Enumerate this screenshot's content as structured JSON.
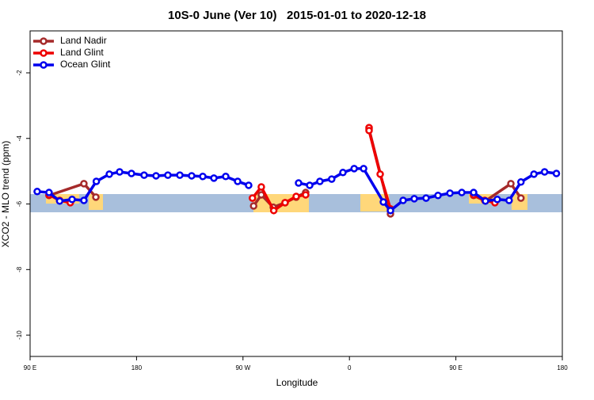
{
  "chart_data": {
    "type": "line",
    "title": "10S-0 June (Ver 10)   2015-01-01 to 2020-12-18",
    "xlabel": "Longitude",
    "ylabel": "XCO2 - MLO trend (ppm)",
    "xlim": [
      90,
      540
    ],
    "ylim": [
      -10.65,
      -0.72
    ],
    "xticks": [
      {
        "value": 90,
        "label": "90 E"
      },
      {
        "value": 180,
        "label": "180"
      },
      {
        "value": 270,
        "label": "90 W"
      },
      {
        "value": 360,
        "label": "0"
      },
      {
        "value": 450,
        "label": "90 E"
      },
      {
        "value": 540,
        "label": "180"
      }
    ],
    "yticks": [
      -10,
      -8,
      -6,
      -4,
      -2
    ],
    "legend": "top-left",
    "series": [
      {
        "name": "Land Nadir",
        "color": "#a52a2a",
        "x": [
          106,
          135.5,
          145.6,
          null,
          279,
          285.5,
          295.6,
          305.6,
          315,
          323,
          null,
          376.6,
          394.7,
          null,
          465,
          475,
          496.5,
          505
        ],
        "values": [
          -5.74,
          -5.38,
          -5.79,
          null,
          -6.06,
          -5.72,
          -6.1,
          -5.96,
          -5.79,
          -5.65,
          null,
          -3.72,
          -6.3,
          null,
          -5.74,
          -5.91,
          -5.38,
          -5.82
        ]
      },
      {
        "name": "Land Glint",
        "color": "#ee0000",
        "x": [
          106,
          115,
          124,
          null,
          278,
          285.5,
          296,
          305.6,
          315,
          323,
          null,
          376.6,
          376.6,
          386,
          394.7,
          null,
          465,
          474.4,
          483
        ],
        "values": [
          -5.72,
          -5.89,
          -5.96,
          null,
          -5.82,
          -5.48,
          -6.2,
          -5.96,
          -5.77,
          -5.72,
          null,
          -3.67,
          -3.76,
          -5.09,
          -6.15,
          null,
          -5.72,
          -5.89,
          -5.96
        ]
      },
      {
        "name": "Ocean Glint",
        "color": "#0000ee",
        "x": [
          96,
          106,
          115,
          125.5,
          135.5,
          146,
          157,
          165.7,
          175.7,
          186.4,
          196.5,
          206.5,
          216.6,
          226.6,
          236,
          245.4,
          255.4,
          265.5,
          274.8,
          null,
          317,
          326.4,
          335,
          345,
          354.5,
          364,
          372,
          388.7,
          394.7,
          405.4,
          414.8,
          424.8,
          434.9,
          445,
          455,
          465,
          475,
          485,
          495,
          505,
          516,
          525,
          535
        ],
        "values": [
          -5.62,
          -5.65,
          -5.91,
          -5.86,
          -5.89,
          -5.31,
          -5.09,
          -5.02,
          -5.07,
          -5.12,
          -5.14,
          -5.12,
          -5.12,
          -5.14,
          -5.16,
          -5.21,
          -5.16,
          -5.31,
          -5.43,
          null,
          -5.36,
          -5.43,
          -5.31,
          -5.24,
          -5.04,
          -4.92,
          -4.92,
          -5.94,
          -6.2,
          -5.89,
          -5.84,
          -5.82,
          -5.74,
          -5.67,
          -5.65,
          -5.65,
          -5.91,
          -5.86,
          -5.89,
          -5.33,
          -5.09,
          -5.02,
          -5.07
        ]
      }
    ]
  }
}
